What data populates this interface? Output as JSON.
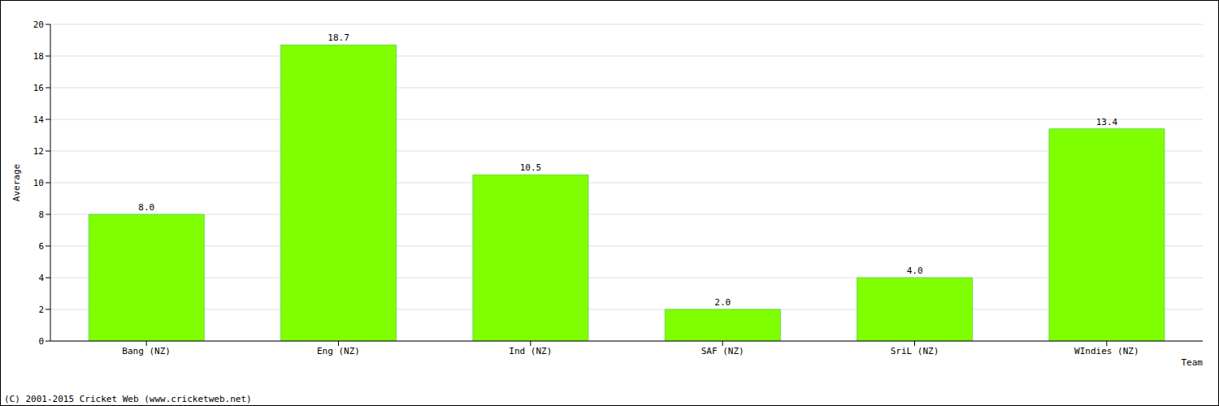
{
  "chart_data": {
    "type": "bar",
    "categories": [
      "Bang (NZ)",
      "Eng (NZ)",
      "Ind (NZ)",
      "SAF (NZ)",
      "SriL (NZ)",
      "WIndies (NZ)"
    ],
    "values": [
      8.0,
      18.7,
      10.5,
      2.0,
      4.0,
      13.4
    ],
    "value_labels": [
      "8.0",
      "18.7",
      "10.5",
      "2.0",
      "4.0",
      "13.4"
    ],
    "color": "#7fff00",
    "ylim": [
      0,
      20
    ],
    "yticks": [
      0,
      2,
      4,
      6,
      8,
      10,
      12,
      14,
      16,
      18,
      20
    ],
    "grid": true,
    "data_labels": true,
    "y_label": "Average",
    "x_label": "Team",
    "annotations": [
      "(C) 2001-2015 Cricket Web (www.cricketweb.net)"
    ]
  }
}
